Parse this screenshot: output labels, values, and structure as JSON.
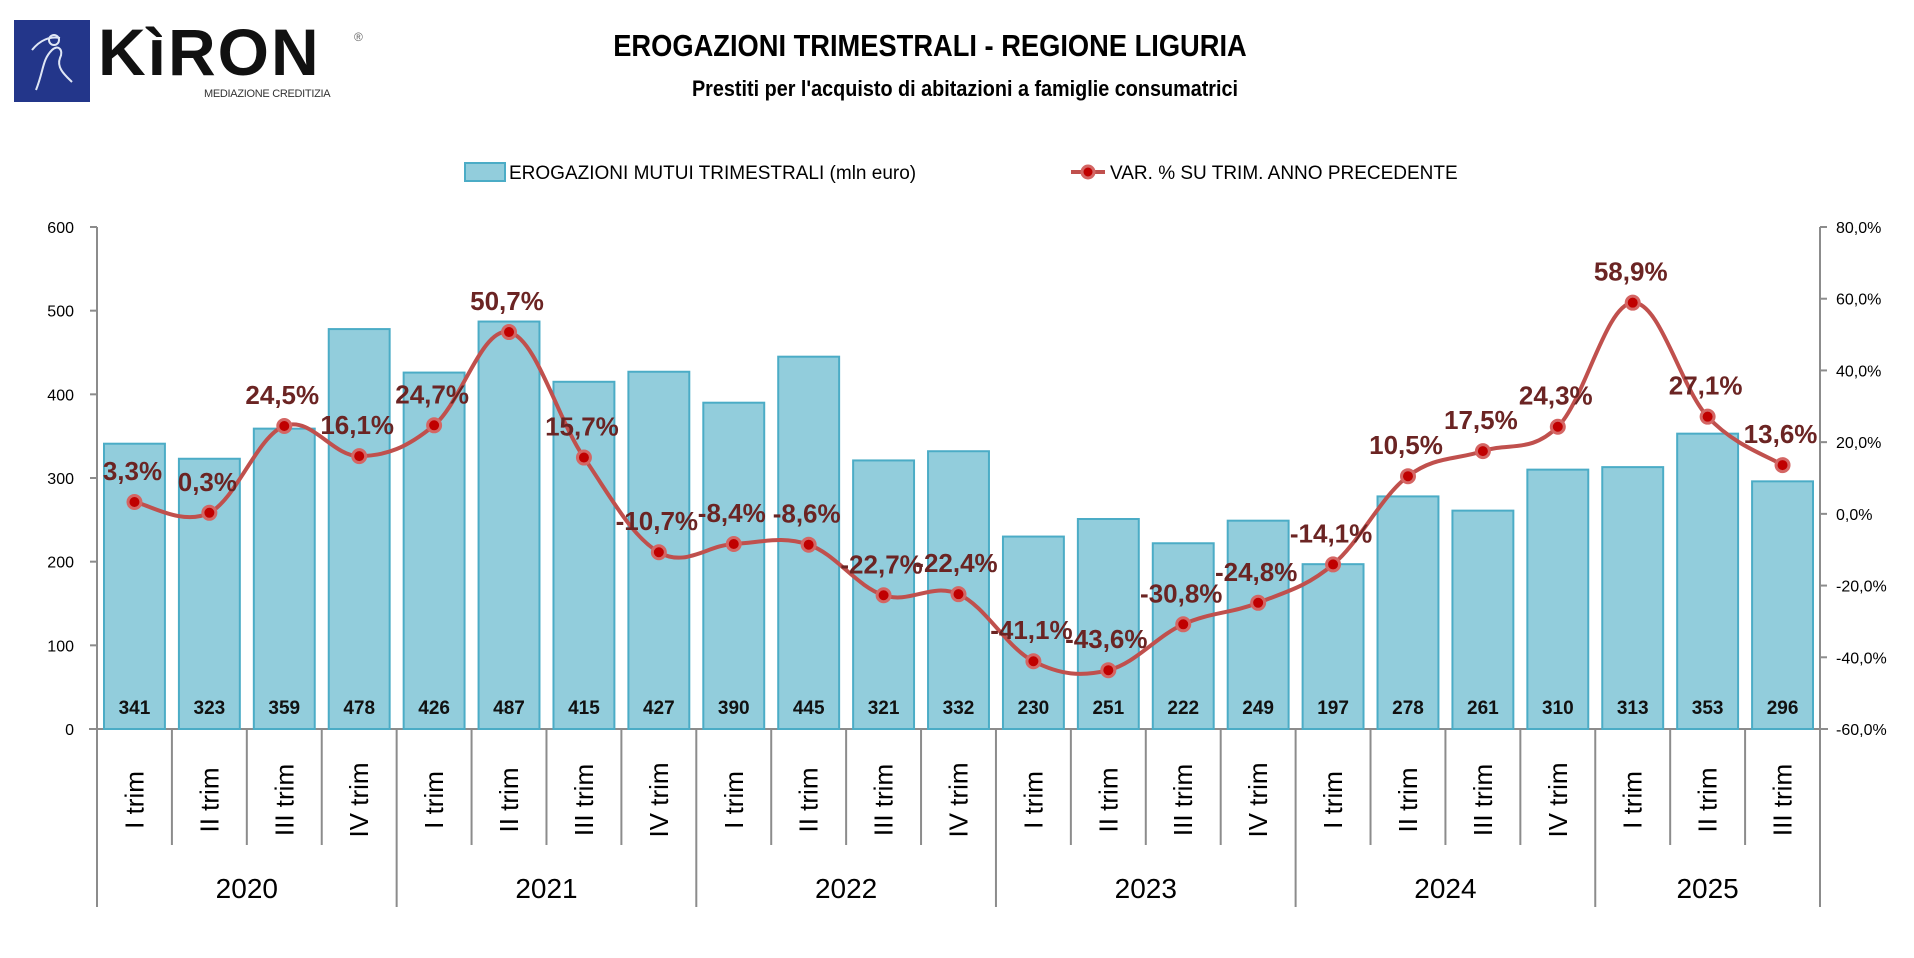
{
  "logo": {
    "name": "KìRON",
    "tagline": "MEDIAZIONE CREDITIZIA",
    "registered": "®"
  },
  "header": {
    "title": "EROGAZIONI TRIMESTRALI - REGIONE LIGURIA",
    "subtitle": "Prestiti per l'acquisto di abitazioni a famiglie consumatrici"
  },
  "colors": {
    "bar_fill": "#92cddc",
    "bar_stroke": "#4bacc6",
    "line": "#c0504d",
    "marker": "#c00000",
    "pct_label": "#6b2423"
  },
  "chart_data": {
    "type": "bar+line",
    "title": "EROGAZIONI TRIMESTRALI - REGIONE LIGURIA",
    "subtitle": "Prestiti per l'acquisto di abitazioni a famiglie consumatrici",
    "legend": [
      "EROGAZIONI MUTUI TRIMESTRALI (mln euro)",
      "VAR. % SU TRIM. ANNO PRECEDENTE"
    ],
    "legend_position": "top",
    "years": [
      {
        "label": "2020",
        "count": 4
      },
      {
        "label": "2021",
        "count": 4
      },
      {
        "label": "2022",
        "count": 4
      },
      {
        "label": "2023",
        "count": 4
      },
      {
        "label": "2024",
        "count": 4
      },
      {
        "label": "2025",
        "count": 3
      }
    ],
    "categories": [
      "I trim",
      "II trim",
      "III trim",
      "IV trim",
      "I trim",
      "II trim",
      "III trim",
      "IV trim",
      "I trim",
      "II trim",
      "III trim",
      "IV trim",
      "I trim",
      "II trim",
      "III trim",
      "IV trim",
      "I trim",
      "II trim",
      "III trim",
      "IV trim",
      "I trim",
      "II trim",
      "III trim"
    ],
    "series": [
      {
        "name": "EROGAZIONI MUTUI TRIMESTRALI (mln euro)",
        "type": "bar",
        "axis": "left",
        "values": [
          341,
          323,
          359,
          478,
          426,
          487,
          415,
          427,
          390,
          445,
          321,
          332,
          230,
          251,
          222,
          249,
          197,
          278,
          261,
          310,
          313,
          353,
          296
        ]
      },
      {
        "name": "VAR. % SU TRIM. ANNO PRECEDENTE",
        "type": "line",
        "axis": "right",
        "values": [
          3.3,
          0.3,
          24.5,
          16.1,
          24.7,
          50.7,
          15.7,
          -10.7,
          -8.4,
          -8.6,
          -22.7,
          -22.4,
          -41.1,
          -43.6,
          -30.8,
          -24.8,
          -14.1,
          10.5,
          17.5,
          24.3,
          58.9,
          27.1,
          13.6
        ],
        "labels": [
          "3,3%",
          "0,3%",
          "24,5%",
          "16,1%",
          "24,7%",
          "50,7%",
          "15,7%",
          "-10,7%",
          "-8,4%",
          "-8,6%",
          "-22,7%",
          "-22,4%",
          "-41,1%",
          "-43,6%",
          "-30,8%",
          "-24,8%",
          "-14,1%",
          "10,5%",
          "17,5%",
          "24,3%",
          "58,9%",
          "27,1%",
          "13,6%"
        ]
      }
    ],
    "y_left": {
      "ylim": [
        0,
        600
      ],
      "ticks": [
        "0",
        "100",
        "200",
        "300",
        "400",
        "500",
        "600"
      ]
    },
    "y_right": {
      "ylim": [
        -60,
        80
      ],
      "ticks": [
        "-60,0%",
        "-40,0%",
        "-20,0%",
        "0,0%",
        "20,0%",
        "40,0%",
        "60,0%",
        "80,0%"
      ]
    },
    "grid": false
  }
}
